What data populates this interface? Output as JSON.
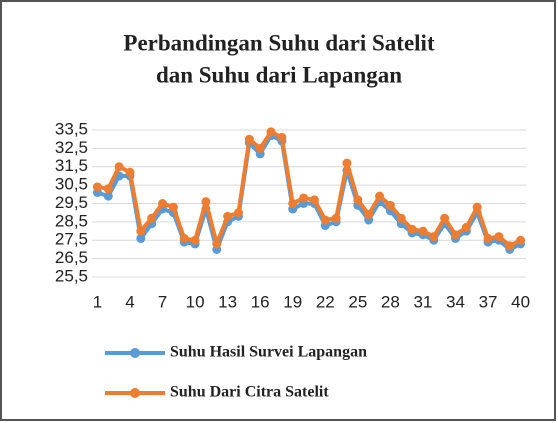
{
  "chart_data": {
    "type": "line",
    "title": [
      "Perbandingan Suhu dari Satelit",
      "dan Suhu dari Lapangan"
    ],
    "x": [
      1,
      2,
      3,
      4,
      5,
      6,
      7,
      8,
      9,
      10,
      11,
      12,
      13,
      14,
      15,
      16,
      17,
      18,
      19,
      20,
      21,
      22,
      23,
      24,
      25,
      26,
      27,
      28,
      29,
      30,
      31,
      32,
      33,
      34,
      35,
      36,
      37,
      38,
      39,
      40
    ],
    "xlim": [
      0.5,
      40.5
    ],
    "xticks": [
      1,
      4,
      7,
      10,
      13,
      16,
      19,
      22,
      25,
      28,
      31,
      34,
      37,
      40
    ],
    "ylim": [
      25.5,
      33.5
    ],
    "yticks": [
      {
        "value": 25.5,
        "label": "25,5"
      },
      {
        "value": 26.5,
        "label": "26,5"
      },
      {
        "value": 27.5,
        "label": "27,5"
      },
      {
        "value": 28.5,
        "label": "28,5"
      },
      {
        "value": 29.5,
        "label": "29,5"
      },
      {
        "value": 30.5,
        "label": "30,5"
      },
      {
        "value": 31.5,
        "label": "31,5"
      },
      {
        "value": 32.5,
        "label": "32,5"
      },
      {
        "value": 33.5,
        "label": "33,5"
      }
    ],
    "grid": true,
    "series": [
      {
        "name": "Suhu Hasil Survei Lapangan",
        "color": "#5b9bd5",
        "values": [
          30.1,
          29.9,
          31.0,
          31.0,
          27.6,
          28.4,
          29.2,
          29.0,
          27.4,
          27.3,
          29.2,
          27.0,
          28.5,
          28.8,
          32.8,
          32.2,
          33.2,
          32.9,
          29.2,
          29.5,
          29.5,
          28.3,
          28.5,
          31.3,
          29.4,
          28.6,
          29.6,
          29.1,
          28.4,
          27.9,
          27.8,
          27.5,
          28.4,
          27.6,
          28.0,
          29.0,
          27.4,
          27.5,
          27.0,
          27.3
        ]
      },
      {
        "name": "Suhu Dari Citra Satelit",
        "color": "#ed7d31",
        "values": [
          30.4,
          30.3,
          31.5,
          31.2,
          28.0,
          28.7,
          29.5,
          29.3,
          27.6,
          27.5,
          29.6,
          27.3,
          28.8,
          29.0,
          33.0,
          32.5,
          33.4,
          33.1,
          29.5,
          29.8,
          29.7,
          28.6,
          28.7,
          31.7,
          29.7,
          28.9,
          29.9,
          29.4,
          28.7,
          28.1,
          28.0,
          27.7,
          28.7,
          27.8,
          28.2,
          29.3,
          27.6,
          27.7,
          27.2,
          27.5
        ]
      }
    ]
  }
}
